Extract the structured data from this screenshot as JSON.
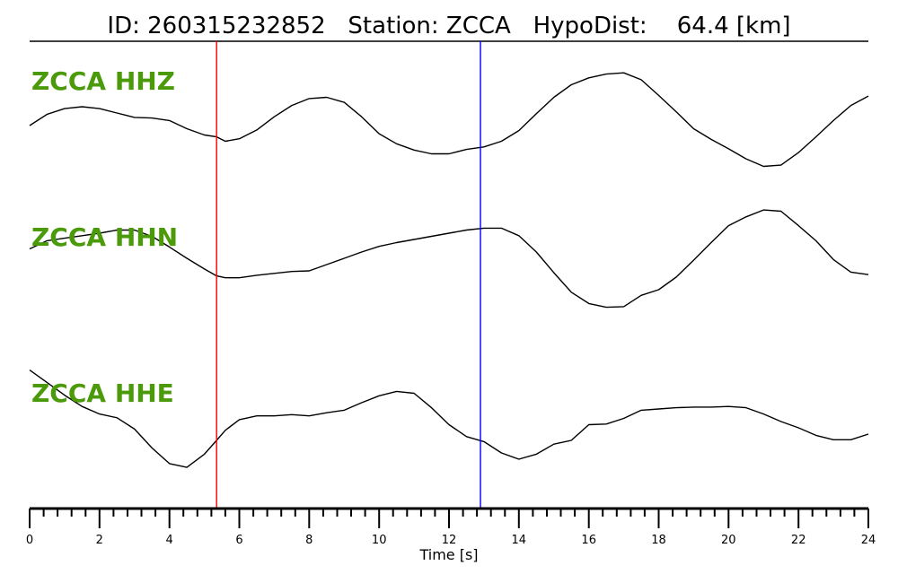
{
  "chart_data": {
    "type": "line",
    "title": "ID: 260315232852   Station: ZCCA   HypoDist:    64.4 [km]",
    "xlabel": "Time [s]",
    "ylabel": "",
    "xlim": [
      0,
      24
    ],
    "x_ticks": [
      0,
      2,
      4,
      6,
      8,
      10,
      12,
      14,
      16,
      18,
      20,
      22,
      24
    ],
    "minor_tick_step": 0.4,
    "label_color": "#4a9a0a",
    "trace_color": "#000000",
    "markers": [
      {
        "time": 5.35,
        "color": "#ff0000"
      },
      {
        "time": 12.9,
        "color": "#0000ff"
      }
    ],
    "series": [
      {
        "name": "ZCCA HHZ",
        "x": [
          0,
          0.5,
          1,
          1.5,
          2,
          2.5,
          3,
          3.5,
          4,
          4.5,
          5,
          5.35,
          5.6,
          6,
          6.5,
          7,
          7.5,
          8,
          8.5,
          9,
          9.5,
          10,
          10.5,
          11,
          11.5,
          12,
          12.5,
          13,
          13.5,
          14,
          14.5,
          15,
          15.5,
          16,
          16.5,
          17,
          17.5,
          18,
          18.5,
          19,
          19.5,
          20,
          20.5,
          21,
          21.5,
          22,
          22.5,
          23,
          23.5,
          24
        ],
        "values": [
          0.0,
          0.18,
          0.27,
          0.3,
          0.27,
          0.2,
          0.13,
          0.12,
          0.08,
          -0.05,
          -0.15,
          -0.18,
          -0.25,
          -0.21,
          -0.07,
          0.14,
          0.32,
          0.43,
          0.45,
          0.37,
          0.14,
          -0.13,
          -0.29,
          -0.39,
          -0.45,
          -0.45,
          -0.38,
          -0.34,
          -0.25,
          -0.08,
          0.19,
          0.45,
          0.65,
          0.76,
          0.82,
          0.84,
          0.73,
          0.48,
          0.22,
          -0.05,
          -0.22,
          -0.37,
          -0.53,
          -0.65,
          -0.63,
          -0.43,
          -0.18,
          0.08,
          0.32,
          0.47
        ]
      },
      {
        "name": "ZCCA HHN",
        "x": [
          0,
          0.5,
          1,
          1.5,
          2,
          2.5,
          3,
          3.5,
          4,
          4.5,
          5,
          5.35,
          5.6,
          6,
          6.5,
          7,
          7.5,
          8,
          8.5,
          9,
          9.5,
          10,
          10.5,
          11,
          11.5,
          12,
          12.5,
          13,
          13.5,
          14,
          14.5,
          15,
          15.5,
          16,
          16.5,
          17,
          17.5,
          18,
          18.5,
          19,
          19.5,
          20,
          20.5,
          21,
          21.5,
          22,
          22.5,
          23,
          23.5,
          24
        ],
        "values": [
          0.25,
          0.38,
          0.42,
          0.46,
          0.5,
          0.55,
          0.55,
          0.45,
          0.28,
          0.1,
          -0.07,
          -0.18,
          -0.21,
          -0.21,
          -0.17,
          -0.14,
          -0.11,
          -0.1,
          0.0,
          0.1,
          0.2,
          0.29,
          0.35,
          0.4,
          0.45,
          0.5,
          0.55,
          0.58,
          0.58,
          0.46,
          0.2,
          -0.13,
          -0.44,
          -0.62,
          -0.68,
          -0.67,
          -0.49,
          -0.4,
          -0.2,
          0.07,
          0.35,
          0.62,
          0.76,
          0.87,
          0.85,
          0.62,
          0.38,
          0.08,
          -0.12,
          -0.16
        ]
      },
      {
        "name": "ZCCA HHE",
        "x": [
          0,
          0.5,
          1,
          1.5,
          2,
          2.5,
          3,
          3.5,
          4,
          4.5,
          5,
          5.35,
          5.6,
          6,
          6.5,
          7,
          7.5,
          8,
          8.5,
          9,
          9.5,
          10,
          10.5,
          11,
          11.5,
          12,
          12.5,
          13,
          13.5,
          14,
          14.5,
          15,
          15.5,
          16,
          16.5,
          17,
          17.5,
          18,
          18.5,
          19,
          19.5,
          20,
          20.5,
          21,
          21.5,
          22,
          22.5,
          23,
          23.5,
          24
        ],
        "values": [
          0.82,
          0.62,
          0.42,
          0.24,
          0.12,
          0.06,
          -0.12,
          -0.42,
          -0.67,
          -0.73,
          -0.52,
          -0.3,
          -0.14,
          0.03,
          0.09,
          0.09,
          0.11,
          0.09,
          0.14,
          0.18,
          0.3,
          0.41,
          0.48,
          0.45,
          0.22,
          -0.05,
          -0.24,
          -0.32,
          -0.5,
          -0.6,
          -0.52,
          -0.36,
          -0.3,
          -0.05,
          -0.04,
          0.05,
          0.18,
          0.2,
          0.22,
          0.23,
          0.23,
          0.24,
          0.22,
          0.12,
          0.0,
          -0.1,
          -0.22,
          -0.29,
          -0.29,
          -0.2
        ]
      }
    ]
  }
}
